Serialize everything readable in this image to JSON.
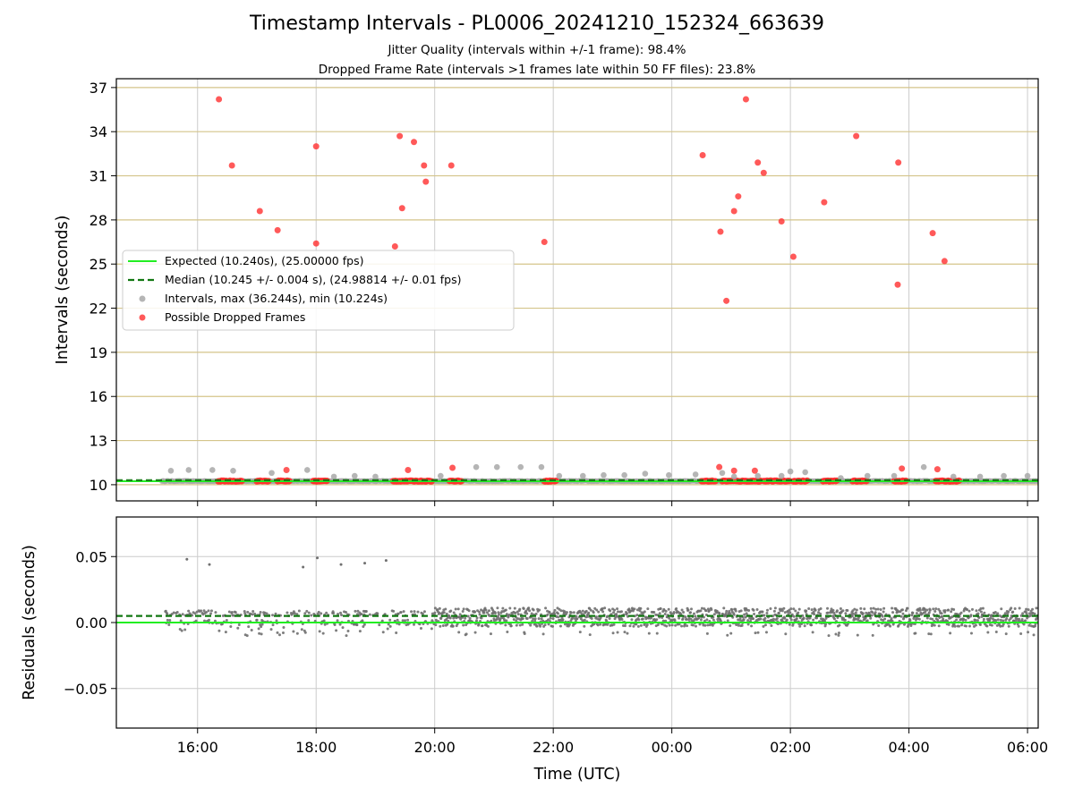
{
  "title": "Timestamp Intervals - PL0006_20241210_152324_663639",
  "subtitle_1": "Jitter Quality (intervals within +/-1 frame): 98.4%",
  "subtitle_2": "Dropped Frame Rate (intervals >1 frames late within 50 FF files): 23.8%",
  "colors": {
    "expected": "#22ee22",
    "median": "#117711",
    "intervals": "#a8a8a8",
    "dropped": "#ff3030",
    "residuals": "#707070",
    "hgrid_top": "#d4c48a",
    "grid": "#cccccc"
  },
  "chart_data": [
    {
      "type": "scatter",
      "ylabel": "Intervals (seconds)",
      "xlim_hours": [
        14.63,
        30.18
      ],
      "ylim": [
        8.9,
        37.6
      ],
      "yticks": [
        10,
        13,
        16,
        19,
        22,
        25,
        28,
        31,
        34,
        37
      ],
      "ytick_labels": [
        "10",
        "13",
        "16",
        "19",
        "22",
        "25",
        "28",
        "31",
        "34",
        "37"
      ],
      "xticks_hours": [
        16,
        18,
        20,
        22,
        24,
        26,
        28,
        30
      ],
      "grid": true,
      "legend_position": "center-left",
      "legend": [
        "Expected (10.240s), (25.00000 fps)",
        "Median (10.245 +/- 0.004 s), (24.98814 +/- 0.01 fps)",
        "Intervals, max (36.244s), min (10.224s)",
        "Possible Dropped Frames"
      ],
      "expected_value": 10.24,
      "median_value": 10.245,
      "series": [
        {
          "name": "Intervals, max (36.244s), min (10.224s)",
          "x": [
            15.55,
            15.85,
            16.25,
            16.6,
            17.25,
            17.85,
            18.3,
            18.65,
            19.0,
            20.1,
            20.7,
            21.05,
            21.45,
            21.8,
            22.1,
            22.5,
            22.85,
            23.2,
            23.55,
            23.95,
            24.4,
            24.85,
            25.05,
            25.45,
            25.85,
            26.0,
            26.25,
            26.85,
            27.3,
            27.75,
            28.25,
            28.75,
            29.2,
            29.6,
            30.0
          ],
          "y": [
            10.95,
            11.0,
            11.0,
            10.95,
            10.8,
            11.0,
            10.55,
            10.6,
            10.55,
            10.6,
            11.2,
            11.2,
            11.2,
            11.2,
            10.6,
            10.6,
            10.65,
            10.65,
            10.75,
            10.65,
            10.7,
            10.8,
            10.55,
            10.6,
            10.6,
            10.9,
            10.85,
            10.45,
            10.6,
            10.6,
            11.2,
            10.55,
            10.55,
            10.6,
            10.6
          ]
        },
        {
          "name": "Possible Dropped Frames",
          "x": [
            16.36,
            16.58,
            17.05,
            17.35,
            18.0,
            18.0,
            19.33,
            19.41,
            19.45,
            19.65,
            19.82,
            19.85,
            20.28,
            21.85,
            24.52,
            24.82,
            24.92,
            25.05,
            25.12,
            25.25,
            25.45,
            25.55,
            25.85,
            26.05,
            26.57,
            27.11,
            27.81,
            27.82,
            28.4,
            28.6,
            17.5,
            19.55,
            20.3,
            24.8,
            25.05,
            25.4,
            27.88,
            28.48
          ],
          "y": [
            36.2,
            31.7,
            28.6,
            27.3,
            33.0,
            26.4,
            26.2,
            33.7,
            28.8,
            33.3,
            31.7,
            30.6,
            31.7,
            26.5,
            32.4,
            27.2,
            22.5,
            28.6,
            29.6,
            36.2,
            31.9,
            31.2,
            27.9,
            25.5,
            29.2,
            33.7,
            23.6,
            31.9,
            27.1,
            25.2,
            11.0,
            11.0,
            11.15,
            11.2,
            10.95,
            10.95,
            11.1,
            11.05
          ]
        }
      ]
    },
    {
      "type": "scatter",
      "ylabel": "Residuals (seconds)",
      "xlabel": "Time (UTC)",
      "xlim_hours": [
        14.63,
        30.18
      ],
      "ylim": [
        -0.08,
        0.08
      ],
      "yticks": [
        0.05,
        0.0,
        -0.05
      ],
      "ytick_labels": [
        "0.05",
        "0.00",
        "−0.05"
      ],
      "xtick_labels": [
        "16:00",
        "18:00",
        "20:00",
        "22:00",
        "00:00",
        "02:00",
        "04:00",
        "06:00"
      ],
      "grid": true,
      "expected_residual": 0.0,
      "median_residual": 0.005,
      "outliers": {
        "x": [
          15.82,
          16.2,
          17.78,
          18.02,
          18.42,
          18.82,
          19.18
        ],
        "y": [
          0.048,
          0.044,
          0.042,
          0.049,
          0.044,
          0.045,
          0.047
        ]
      }
    }
  ]
}
